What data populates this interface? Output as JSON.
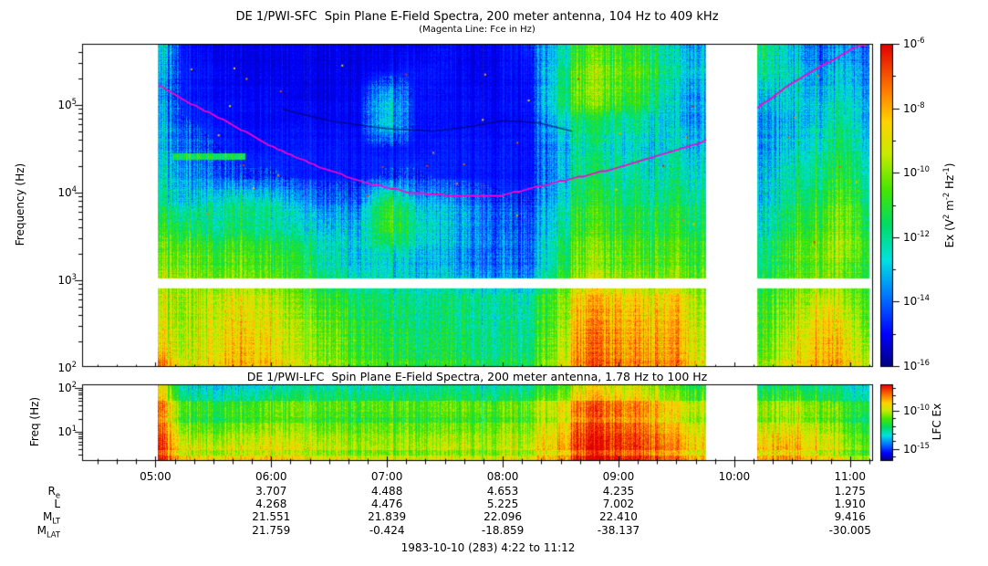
{
  "sfc": {
    "title": "DE 1/PWI-SFC  Spin Plane E-Field Spectra, 200 meter antenna, 104 Hz to 409 kHz",
    "subtitle": "(Magenta Line: Fce in Hz)",
    "ylabel": "Frequency (Hz)",
    "ytick_exponents": [
      5,
      4,
      3,
      2
    ],
    "colorbar": {
      "label_parts": [
        {
          "t": "Ex (V"
        },
        {
          "t": "2",
          "sup": true
        },
        {
          "t": " m"
        },
        {
          "t": "-2",
          "sup": true
        },
        {
          "t": " Hz"
        },
        {
          "t": "-1",
          "sup": true
        },
        {
          "t": ")"
        }
      ],
      "major_tick_exponents": [
        -6,
        -8,
        -10,
        -12,
        -14,
        -16
      ],
      "minor_tick_exponents": [
        -7,
        -9,
        -11,
        -13,
        -15
      ],
      "range_exponents": [
        -6,
        -16
      ]
    }
  },
  "lfc": {
    "title": "DE 1/PWI-LFC  Spin Plane E-Field Spectra, 200 meter antenna, 1.78 Hz to 100 Hz",
    "ylabel": "Freq (Hz)",
    "ytick_exponents": [
      2,
      1
    ],
    "colorbar": {
      "label": "LFC Ex",
      "major_tick_exponents": [
        -10,
        -15
      ],
      "minor_tick_exponents": [
        -7,
        -8,
        -9,
        -11,
        -12,
        -13,
        -14,
        -16
      ],
      "range_exponents": [
        -6.5,
        -16.5
      ]
    }
  },
  "xaxis": {
    "hours": [
      5,
      6,
      7,
      8,
      9,
      10,
      11
    ],
    "labels": [
      "05:00",
      "06:00",
      "07:00",
      "08:00",
      "09:00",
      "10:00",
      "11:00"
    ]
  },
  "caption": "1983-10-10 (283) 4:22 to 11:12",
  "ephemeris": {
    "rows": [
      {
        "name": "Re",
        "label_parts": [
          {
            "t": "R"
          },
          {
            "t": "e",
            "sub": true
          }
        ],
        "values": [
          null,
          "3.707",
          "4.488",
          "4.653",
          "4.235",
          null,
          "1.275"
        ]
      },
      {
        "name": "L",
        "label_parts": [
          {
            "t": "L"
          }
        ],
        "values": [
          null,
          "4.268",
          "4.476",
          "5.225",
          "7.002",
          null,
          "1.910"
        ]
      },
      {
        "name": "MLT",
        "label_parts": [
          {
            "t": "M"
          },
          {
            "t": "LT",
            "sub": true
          }
        ],
        "values": [
          null,
          "21.551",
          "21.839",
          "22.096",
          "22.410",
          null,
          "9.416"
        ]
      },
      {
        "name": "MLAT",
        "label_parts": [
          {
            "t": "M"
          },
          {
            "t": "LAT",
            "sub": true
          }
        ],
        "values": [
          null,
          "21.759",
          "-0.424",
          "-18.859",
          "-38.137",
          null,
          "-30.005"
        ]
      }
    ]
  },
  "chart_data": {
    "type": "heatmap",
    "title": "DE 1/PWI-SFC  Spin Plane E-Field Spectra, 200 meter antenna, 104 Hz to 409 kHz",
    "subtitle": "(Magenta Line: Fce in Hz)",
    "time_range_hours": [
      4.3667,
      11.2
    ],
    "time_tick_labels": [
      "05:00",
      "06:00",
      "07:00",
      "08:00",
      "09:00",
      "10:00",
      "11:00"
    ],
    "data_segments_hours": [
      [
        5.02,
        9.76
      ],
      [
        10.2,
        11.17
      ]
    ],
    "grid_time_columns_hours": [
      5.0,
      5.25,
      5.5,
      5.75,
      6.0,
      6.25,
      6.5,
      6.75,
      7.0,
      7.25,
      7.5,
      7.75,
      8.0,
      8.25,
      8.5,
      8.75,
      9.0,
      9.25,
      9.5,
      9.75,
      10.0,
      10.25,
      10.5,
      10.75,
      11.0,
      11.25
    ],
    "sfc": {
      "ylabel": "Frequency (Hz)",
      "freq_range_hz": [
        104,
        409000
      ],
      "value_unit": "V^2 m^-2 Hz^-1",
      "value_range": [
        1e-16,
        1e-06
      ],
      "gap_band_log10hz": [
        2.95,
        3.02
      ],
      "row_log10_freq": [
        5.7,
        5.4,
        5.1,
        4.8,
        4.5,
        4.2,
        3.9,
        3.6,
        3.3,
        3.05,
        2.8,
        2.5,
        2.2,
        2.05
      ],
      "intensity_grid_0to1": [
        [
          0.35,
          0.1,
          0.08,
          0.08,
          0.08,
          0.08,
          0.08,
          0.08,
          0.08,
          0.08,
          0.1,
          0.08,
          0.1,
          0.15,
          0.35,
          0.55,
          0.5,
          0.45,
          0.3,
          0.25,
          0.4,
          0.45,
          0.3,
          0.2,
          0.25,
          0.1
        ],
        [
          0.3,
          0.12,
          0.1,
          0.08,
          0.08,
          0.08,
          0.08,
          0.08,
          0.1,
          0.12,
          0.1,
          0.08,
          0.1,
          0.12,
          0.4,
          0.6,
          0.55,
          0.5,
          0.35,
          0.3,
          0.38,
          0.4,
          0.35,
          0.25,
          0.3,
          0.12
        ],
        [
          0.25,
          0.12,
          0.1,
          0.1,
          0.1,
          0.08,
          0.08,
          0.1,
          0.3,
          0.12,
          0.1,
          0.1,
          0.1,
          0.12,
          0.45,
          0.62,
          0.55,
          0.45,
          0.3,
          0.25,
          0.3,
          0.3,
          0.35,
          0.3,
          0.35,
          0.15
        ],
        [
          0.3,
          0.15,
          0.12,
          0.1,
          0.1,
          0.1,
          0.1,
          0.1,
          0.35,
          0.12,
          0.1,
          0.1,
          0.1,
          0.12,
          0.35,
          0.45,
          0.4,
          0.35,
          0.3,
          0.25,
          0.25,
          0.25,
          0.3,
          0.35,
          0.4,
          0.15
        ],
        [
          0.3,
          0.2,
          0.15,
          0.12,
          0.12,
          0.12,
          0.12,
          0.12,
          0.12,
          0.12,
          0.12,
          0.12,
          0.12,
          0.12,
          0.3,
          0.4,
          0.35,
          0.3,
          0.35,
          0.3,
          0.25,
          0.25,
          0.35,
          0.4,
          0.45,
          0.2
        ],
        [
          0.35,
          0.25,
          0.2,
          0.15,
          0.15,
          0.12,
          0.12,
          0.12,
          0.15,
          0.15,
          0.12,
          0.12,
          0.12,
          0.12,
          0.3,
          0.45,
          0.4,
          0.35,
          0.4,
          0.35,
          0.3,
          0.3,
          0.4,
          0.45,
          0.5,
          0.25
        ],
        [
          0.4,
          0.3,
          0.35,
          0.4,
          0.35,
          0.25,
          0.2,
          0.2,
          0.5,
          0.3,
          0.25,
          0.2,
          0.15,
          0.15,
          0.35,
          0.5,
          0.45,
          0.4,
          0.45,
          0.4,
          0.3,
          0.3,
          0.45,
          0.5,
          0.55,
          0.3
        ],
        [
          0.5,
          0.45,
          0.4,
          0.45,
          0.4,
          0.35,
          0.3,
          0.3,
          0.55,
          0.4,
          0.3,
          0.25,
          0.2,
          0.2,
          0.4,
          0.55,
          0.5,
          0.45,
          0.5,
          0.45,
          0.35,
          0.35,
          0.5,
          0.55,
          0.6,
          0.35
        ],
        [
          0.55,
          0.55,
          0.5,
          0.55,
          0.5,
          0.45,
          0.35,
          0.3,
          0.35,
          0.3,
          0.25,
          0.2,
          0.2,
          0.2,
          0.45,
          0.6,
          0.55,
          0.5,
          0.55,
          0.5,
          0.4,
          0.4,
          0.55,
          0.6,
          0.6,
          0.4
        ],
        [
          0.6,
          0.6,
          0.55,
          0.6,
          0.55,
          0.5,
          0.4,
          0.35,
          0.35,
          0.3,
          0.3,
          0.25,
          0.25,
          0.25,
          0.5,
          0.65,
          0.6,
          0.55,
          0.6,
          0.55,
          0.45,
          0.45,
          0.55,
          0.6,
          0.55,
          0.4
        ],
        [
          0.65,
          0.6,
          0.65,
          0.7,
          0.65,
          0.55,
          0.5,
          0.45,
          0.42,
          0.4,
          0.4,
          0.4,
          0.4,
          0.4,
          0.6,
          0.8,
          0.75,
          0.7,
          0.75,
          0.6,
          0.5,
          0.5,
          0.6,
          0.7,
          0.6,
          0.45
        ],
        [
          0.7,
          0.6,
          0.68,
          0.75,
          0.7,
          0.6,
          0.55,
          0.5,
          0.45,
          0.42,
          0.42,
          0.4,
          0.4,
          0.42,
          0.62,
          0.85,
          0.8,
          0.75,
          0.8,
          0.62,
          0.52,
          0.52,
          0.65,
          0.78,
          0.68,
          0.45
        ],
        [
          0.75,
          0.62,
          0.7,
          0.78,
          0.72,
          0.62,
          0.58,
          0.52,
          0.48,
          0.45,
          0.45,
          0.42,
          0.42,
          0.45,
          0.65,
          0.88,
          0.82,
          0.78,
          0.82,
          0.65,
          0.55,
          0.55,
          0.7,
          0.8,
          0.72,
          0.5
        ],
        [
          0.9,
          0.65,
          0.72,
          0.8,
          0.75,
          0.65,
          0.6,
          0.55,
          0.5,
          0.48,
          0.48,
          0.45,
          0.45,
          0.48,
          0.68,
          0.9,
          0.85,
          0.8,
          0.85,
          0.68,
          0.58,
          0.6,
          0.72,
          0.82,
          0.75,
          0.55
        ]
      ]
    },
    "lfc": {
      "ylabel": "Freq (Hz)",
      "freq_range_hz": [
        1.78,
        100
      ],
      "value_unit": "V^2 m^-2 Hz^-1",
      "row_log10_freq": [
        2.0,
        1.7,
        1.4,
        1.1,
        0.8,
        0.55,
        0.3
      ],
      "intensity_grid_0to1": [
        [
          0.85,
          0.4,
          0.38,
          0.4,
          0.42,
          0.45,
          0.45,
          0.45,
          0.45,
          0.45,
          0.45,
          0.45,
          0.45,
          0.5,
          0.6,
          0.8,
          0.75,
          0.7,
          0.6,
          0.55,
          0.5,
          0.5,
          0.55,
          0.5,
          0.42,
          0.35
        ],
        [
          0.88,
          0.45,
          0.42,
          0.45,
          0.5,
          0.5,
          0.5,
          0.5,
          0.5,
          0.5,
          0.5,
          0.5,
          0.5,
          0.55,
          0.65,
          0.85,
          0.8,
          0.75,
          0.65,
          0.6,
          0.55,
          0.55,
          0.6,
          0.55,
          0.45,
          0.38
        ],
        [
          0.9,
          0.5,
          0.48,
          0.52,
          0.55,
          0.55,
          0.52,
          0.52,
          0.52,
          0.52,
          0.52,
          0.52,
          0.55,
          0.58,
          0.7,
          0.9,
          0.85,
          0.8,
          0.7,
          0.62,
          0.6,
          0.6,
          0.65,
          0.6,
          0.5,
          0.4
        ],
        [
          0.92,
          0.55,
          0.52,
          0.58,
          0.6,
          0.58,
          0.55,
          0.55,
          0.55,
          0.55,
          0.55,
          0.55,
          0.58,
          0.6,
          0.72,
          0.92,
          0.88,
          0.82,
          0.75,
          0.65,
          0.65,
          0.65,
          0.7,
          0.65,
          0.52,
          0.42
        ],
        [
          0.95,
          0.6,
          0.58,
          0.62,
          0.65,
          0.62,
          0.6,
          0.58,
          0.58,
          0.58,
          0.58,
          0.58,
          0.6,
          0.62,
          0.75,
          0.95,
          0.9,
          0.85,
          0.78,
          0.68,
          0.7,
          0.7,
          0.75,
          0.68,
          0.55,
          0.45
        ],
        [
          0.97,
          0.68,
          0.65,
          0.7,
          0.7,
          0.68,
          0.65,
          0.62,
          0.62,
          0.62,
          0.62,
          0.62,
          0.65,
          0.68,
          0.78,
          0.97,
          0.93,
          0.88,
          0.82,
          0.72,
          0.74,
          0.75,
          0.8,
          0.72,
          0.6,
          0.5
        ],
        [
          1.0,
          0.72,
          0.7,
          0.75,
          0.72,
          0.7,
          0.68,
          0.65,
          0.65,
          0.65,
          0.65,
          0.65,
          0.68,
          0.7,
          0.8,
          1.0,
          0.95,
          0.9,
          0.85,
          0.75,
          0.76,
          0.78,
          0.82,
          0.75,
          0.65,
          0.55
        ]
      ]
    },
    "fce_line": {
      "color": "#FF00CC",
      "segments_hour_log10hz": [
        [
          [
            5.03,
            5.23
          ],
          [
            5.3,
            5.02
          ],
          [
            5.6,
            4.82
          ],
          [
            6.0,
            4.53
          ],
          [
            6.4,
            4.3
          ],
          [
            6.8,
            4.12
          ],
          [
            7.2,
            4.0
          ],
          [
            7.6,
            3.96
          ],
          [
            8.0,
            3.97
          ],
          [
            8.4,
            4.1
          ],
          [
            8.8,
            4.22
          ],
          [
            9.2,
            4.36
          ],
          [
            9.6,
            4.52
          ],
          [
            9.76,
            4.6
          ]
        ],
        [
          [
            10.2,
            4.97
          ],
          [
            10.5,
            5.25
          ],
          [
            10.8,
            5.48
          ],
          [
            11.05,
            5.66
          ],
          [
            11.15,
            5.72
          ]
        ]
      ]
    },
    "faint_trace_hour_log10hz": [
      [
        6.1,
        4.95
      ],
      [
        6.5,
        4.82
      ],
      [
        7.0,
        4.73
      ],
      [
        7.4,
        4.7
      ],
      [
        7.7,
        4.75
      ],
      [
        8.0,
        4.82
      ],
      [
        8.3,
        4.8
      ],
      [
        8.6,
        4.7
      ]
    ],
    "narrowband_emission": {
      "hours": [
        5.15,
        5.78
      ],
      "log10hz": 4.42,
      "value": 0.45
    }
  }
}
